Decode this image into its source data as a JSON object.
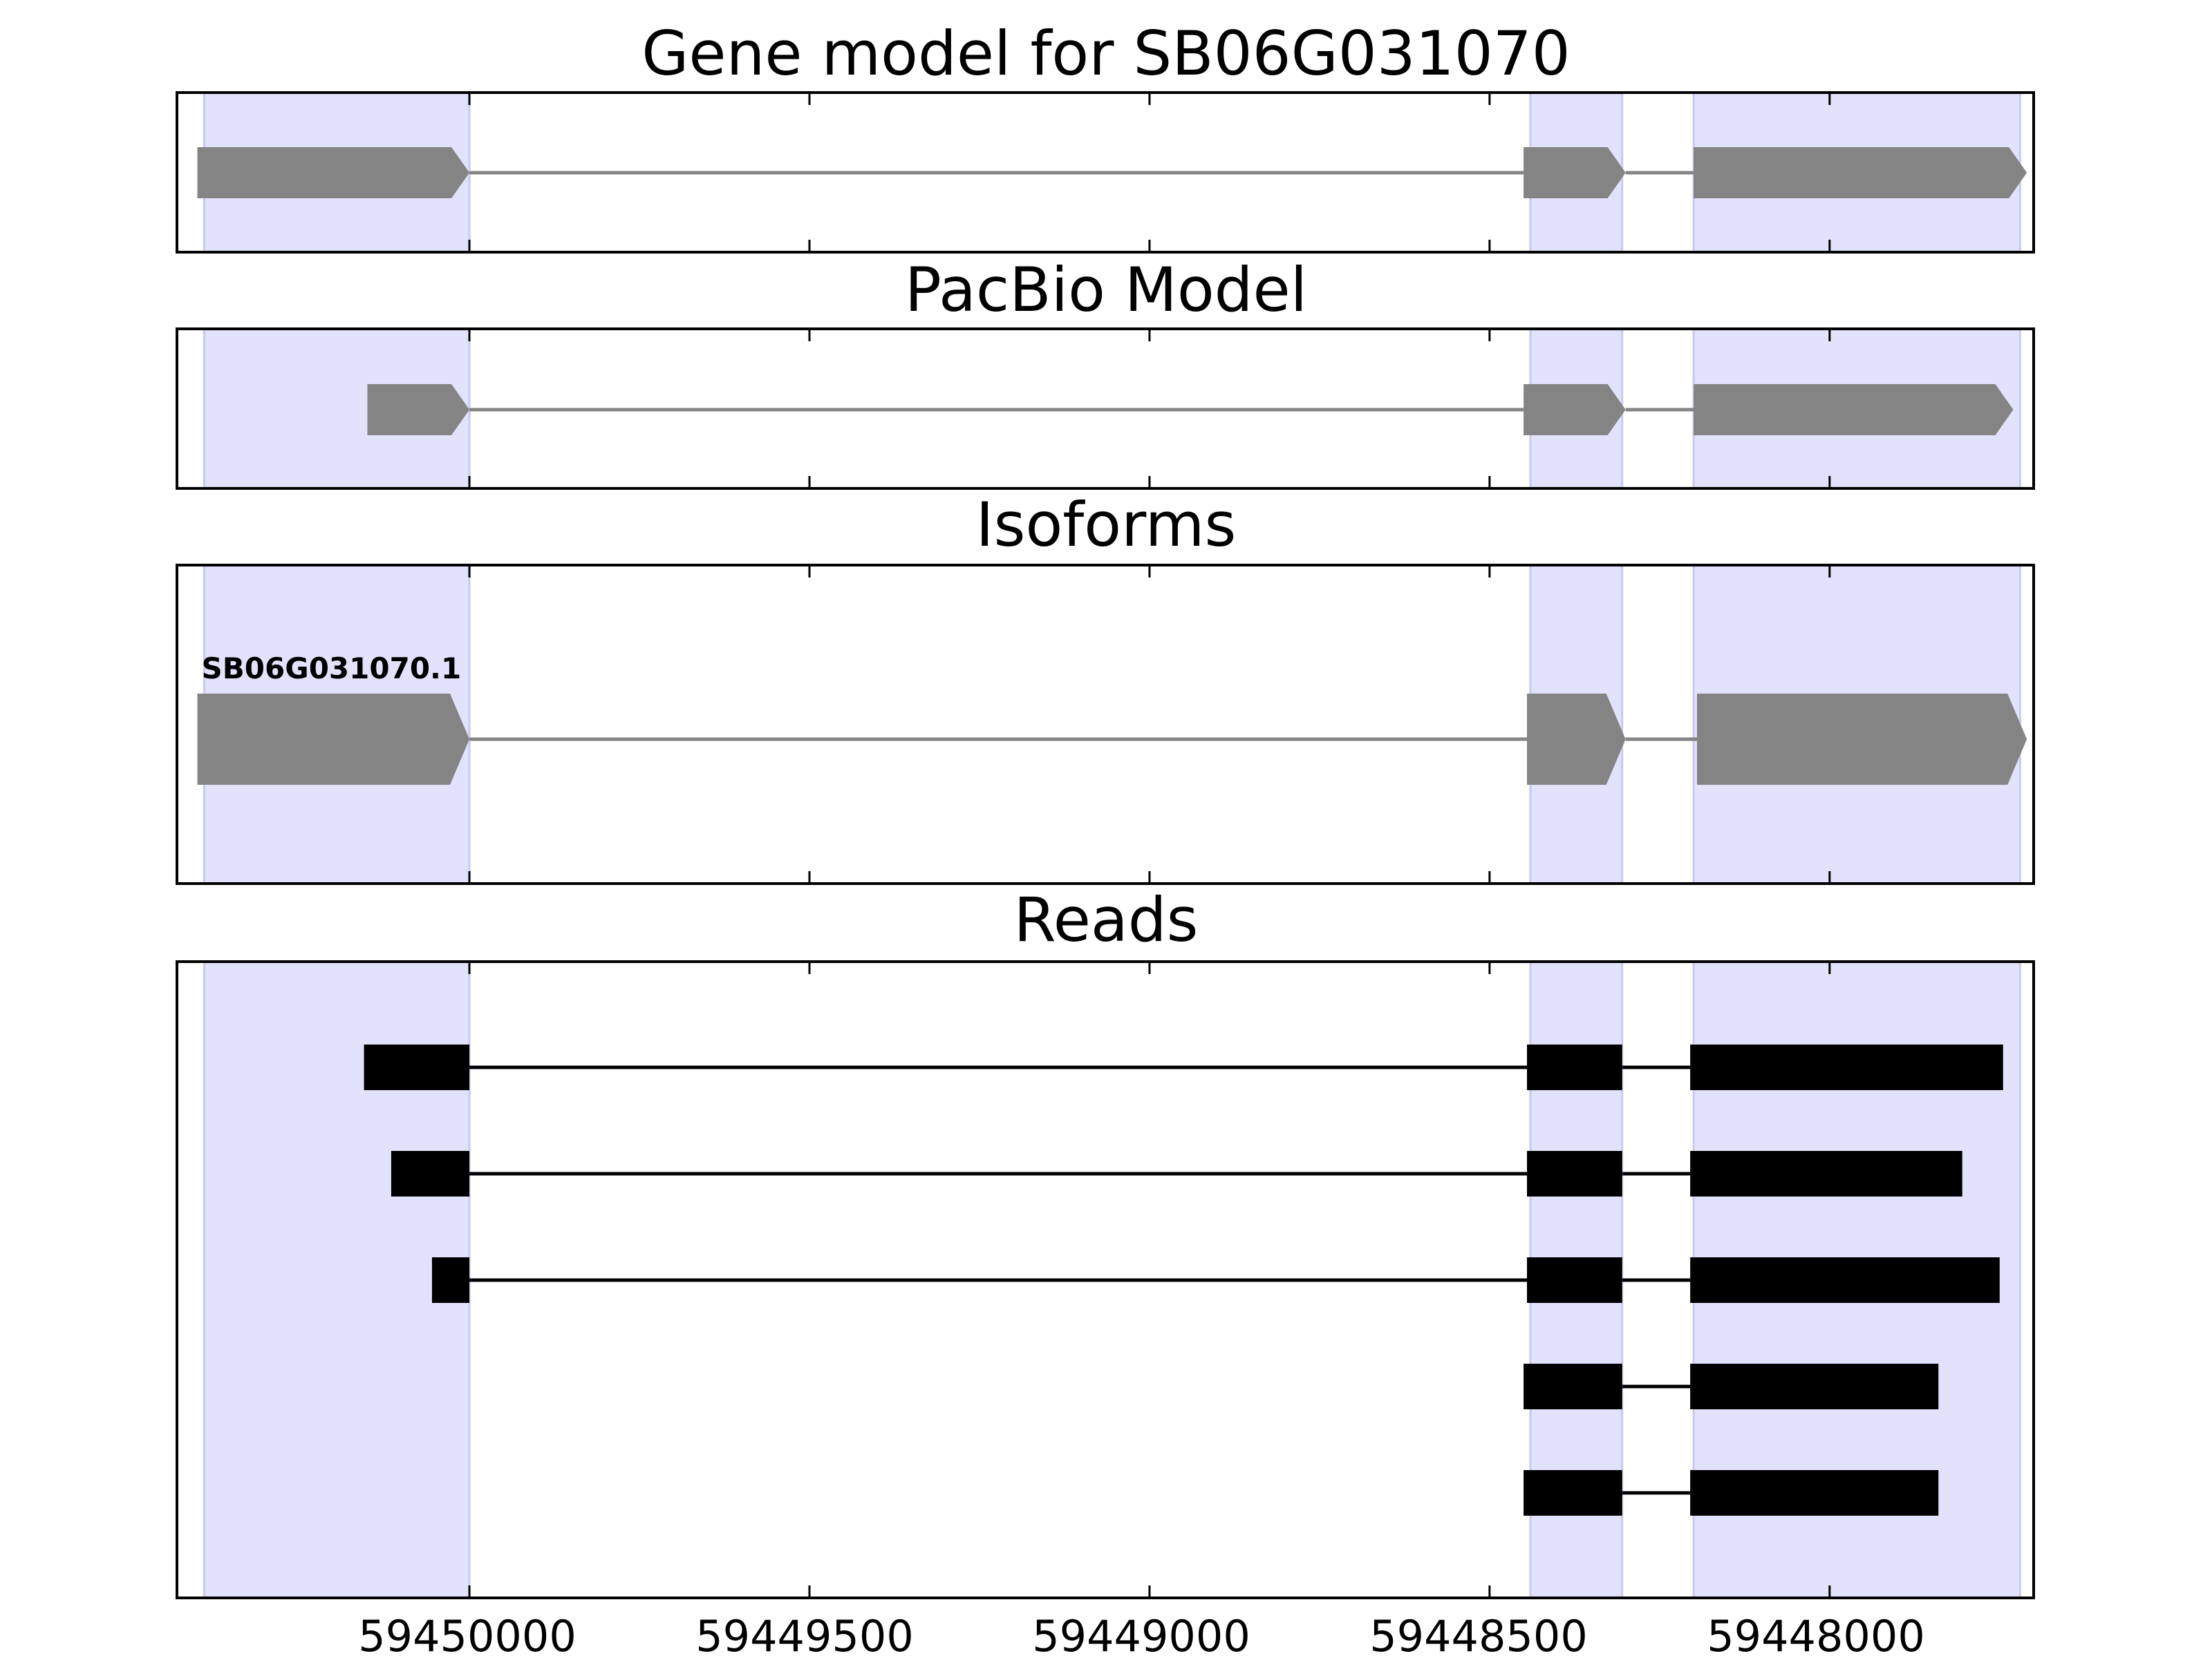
{
  "figure": {
    "colors": {
      "highlight": "#e2e2fc",
      "highlight_edge": "#c9c9ee",
      "model_feature": "#848484",
      "read_feature": "#000000",
      "frame": "#000000"
    },
    "x_axis": {
      "direction": "reversed",
      "min": 59447700,
      "max": 59450430,
      "ticks": [
        {
          "value": 59450000,
          "label": "59450000"
        },
        {
          "value": 59449500,
          "label": "59449500"
        },
        {
          "value": 59449000,
          "label": "59449000"
        },
        {
          "value": 59448500,
          "label": "59448500"
        },
        {
          "value": 59448000,
          "label": "59448000"
        }
      ]
    },
    "exon_highlights": [
      {
        "start": 59450390,
        "end": 59450000
      },
      {
        "start": 59448440,
        "end": 59448305
      },
      {
        "start": 59448200,
        "end": 59447720
      }
    ],
    "panels": [
      {
        "id": "gene-model",
        "title": "Gene model for SB06G031070",
        "style": "model",
        "tracks": [
          {
            "label": "",
            "exons": [
              [
                59450400,
                59450000
              ],
              [
                59448450,
                59448300
              ],
              [
                59448200,
                59447710
              ]
            ]
          }
        ]
      },
      {
        "id": "pacbio-model",
        "title": "PacBio Model",
        "style": "model",
        "tracks": [
          {
            "label": "",
            "exons": [
              [
                59450150,
                59450000
              ],
              [
                59448450,
                59448300
              ],
              [
                59448200,
                59447730
              ]
            ]
          }
        ]
      },
      {
        "id": "isoforms",
        "title": "Isoforms",
        "style": "isoform",
        "tracks": [
          {
            "label": "SB06G031070.1",
            "exons": [
              [
                59450400,
                59450000
              ],
              [
                59448445,
                59448300
              ],
              [
                59448195,
                59447710
              ]
            ]
          }
        ]
      },
      {
        "id": "reads",
        "title": "Reads",
        "style": "read",
        "tracks": [
          {
            "label": "",
            "exons": [
              [
                59450155,
                59450000
              ],
              [
                59448445,
                59448305
              ],
              [
                59448205,
                59447745
              ]
            ]
          },
          {
            "label": "",
            "exons": [
              [
                59450115,
                59450000
              ],
              [
                59448445,
                59448305
              ],
              [
                59448205,
                59447805
              ]
            ]
          },
          {
            "label": "",
            "exons": [
              [
                59450055,
                59450000
              ],
              [
                59448445,
                59448305
              ],
              [
                59448205,
                59447750
              ]
            ]
          },
          {
            "label": "",
            "exons": [
              [
                59448450,
                59448305
              ],
              [
                59448205,
                59447840
              ]
            ]
          },
          {
            "label": "",
            "exons": [
              [
                59448450,
                59448305
              ],
              [
                59448205,
                59447840
              ]
            ]
          }
        ]
      }
    ]
  }
}
